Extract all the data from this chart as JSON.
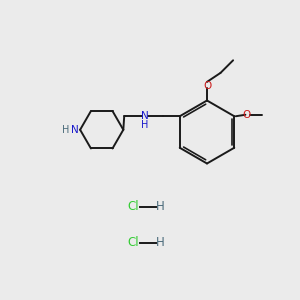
{
  "background_color": "#ebebeb",
  "bond_color": "#1a1a1a",
  "N_color": "#1a1acc",
  "O_color": "#cc1a1a",
  "Cl_color": "#33cc33",
  "H_dark_color": "#4a6a7a",
  "figsize": [
    3.0,
    3.0
  ],
  "dpi": 100,
  "xlim": [
    0,
    10
  ],
  "ylim": [
    0,
    10
  ]
}
